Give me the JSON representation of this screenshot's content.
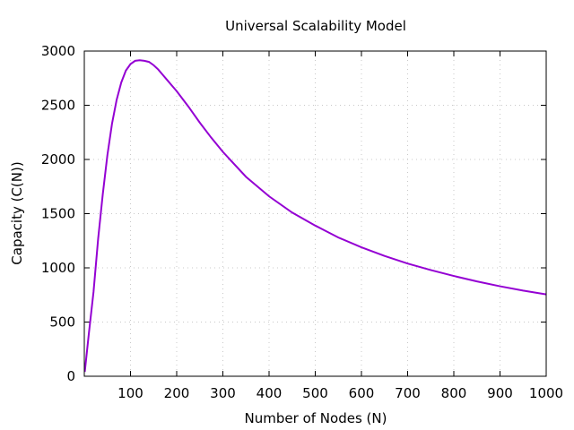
{
  "chart_data": {
    "type": "line",
    "title": "Universal Scalability Model",
    "xlabel": "Number of Nodes (N)",
    "ylabel": "Capacity (C(N))",
    "xlim": [
      0,
      1000
    ],
    "ylim": [
      0,
      3000
    ],
    "x_ticks": [
      100,
      200,
      300,
      400,
      500,
      600,
      700,
      800,
      900,
      1000
    ],
    "y_ticks": [
      0,
      500,
      1000,
      1500,
      2000,
      2500,
      3000
    ],
    "grid": true,
    "line_color": "#9400d3",
    "series": [
      {
        "x": [
          1,
          10,
          20,
          30,
          40,
          50,
          60,
          70,
          80,
          90,
          100,
          110,
          120,
          130,
          140,
          150,
          160,
          170,
          180,
          190,
          200,
          225,
          250,
          275,
          300,
          350,
          400,
          450,
          500,
          550,
          600,
          650,
          700,
          750,
          800,
          850,
          900,
          950,
          1000
        ],
        "y": [
          40,
          400,
          780,
          1270,
          1680,
          2040,
          2330,
          2550,
          2710,
          2820,
          2880,
          2910,
          2915,
          2910,
          2900,
          2870,
          2830,
          2780,
          2730,
          2680,
          2630,
          2490,
          2340,
          2200,
          2070,
          1840,
          1660,
          1510,
          1390,
          1280,
          1190,
          1110,
          1040,
          980,
          925,
          875,
          830,
          790,
          755
        ]
      }
    ]
  }
}
